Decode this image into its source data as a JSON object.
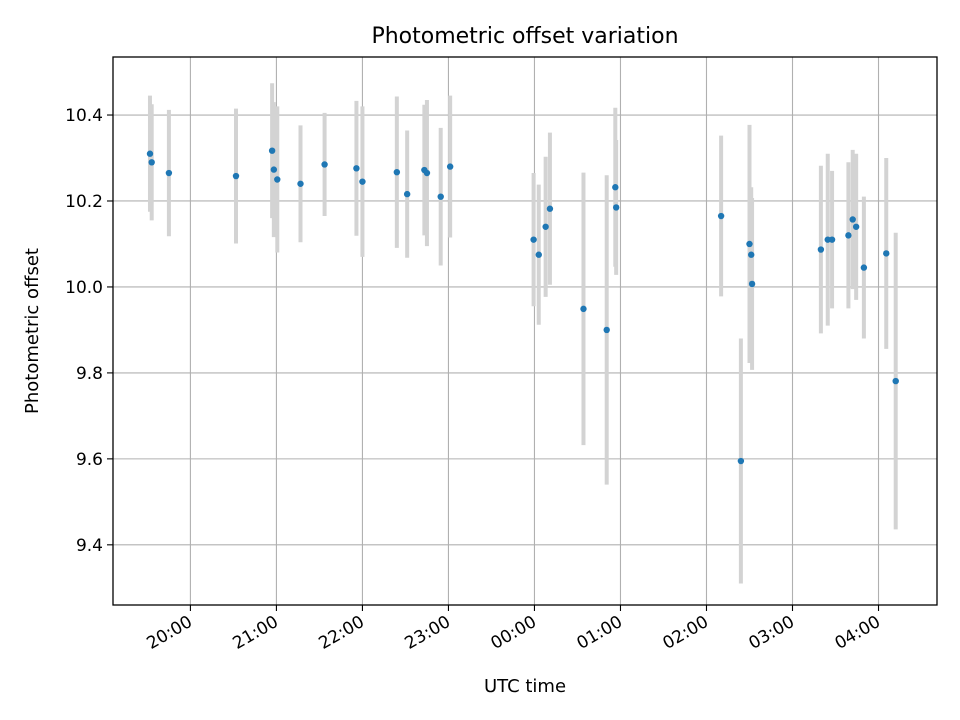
{
  "chart_data": {
    "type": "scatter",
    "title": "Photometric offset variation",
    "xlabel": "UTC time",
    "ylabel": "Photometric offset",
    "x_unit": "UTC time, hours after 00:00 (negative = previous evening)",
    "xlim": [
      -4.9,
      4.68
    ],
    "ylim": [
      9.26,
      10.535
    ],
    "x_ticks": [
      {
        "value": -4,
        "label": "20:00"
      },
      {
        "value": -3,
        "label": "21:00"
      },
      {
        "value": -2,
        "label": "22:00"
      },
      {
        "value": -1,
        "label": "23:00"
      },
      {
        "value": 0,
        "label": "00:00"
      },
      {
        "value": 1,
        "label": "01:00"
      },
      {
        "value": 2,
        "label": "02:00"
      },
      {
        "value": 3,
        "label": "03:00"
      },
      {
        "value": 4,
        "label": "04:00"
      }
    ],
    "y_ticks": [
      {
        "value": 9.4,
        "label": "9.4"
      },
      {
        "value": 9.6,
        "label": "9.6"
      },
      {
        "value": 9.8,
        "label": "9.8"
      },
      {
        "value": 10.0,
        "label": "10.0"
      },
      {
        "value": 10.2,
        "label": "10.2"
      },
      {
        "value": 10.4,
        "label": "10.4"
      }
    ],
    "grid": true,
    "marker_color": "#1f77b4",
    "errorbar_color": "#d3d3d3",
    "points": [
      {
        "x": -4.47,
        "y": 10.31,
        "err": 0.135
      },
      {
        "x": -4.45,
        "y": 10.29,
        "err": 0.135
      },
      {
        "x": -4.25,
        "y": 10.265,
        "err": 0.147
      },
      {
        "x": -3.47,
        "y": 10.258,
        "err": 0.157
      },
      {
        "x": -3.05,
        "y": 10.317,
        "err": 0.157
      },
      {
        "x": -3.03,
        "y": 10.273,
        "err": 0.157
      },
      {
        "x": -2.99,
        "y": 10.25,
        "err": 0.17
      },
      {
        "x": -2.72,
        "y": 10.24,
        "err": 0.136
      },
      {
        "x": -2.44,
        "y": 10.285,
        "err": 0.12
      },
      {
        "x": -2.07,
        "y": 10.276,
        "err": 0.157
      },
      {
        "x": -2.0,
        "y": 10.245,
        "err": 0.175
      },
      {
        "x": -1.6,
        "y": 10.267,
        "err": 0.176
      },
      {
        "x": -1.48,
        "y": 10.216,
        "err": 0.148
      },
      {
        "x": -1.28,
        "y": 10.272,
        "err": 0.152
      },
      {
        "x": -1.25,
        "y": 10.265,
        "err": 0.17
      },
      {
        "x": -1.09,
        "y": 10.21,
        "err": 0.16
      },
      {
        "x": -0.98,
        "y": 10.28,
        "err": 0.165
      },
      {
        "x": -0.01,
        "y": 10.11,
        "err": 0.155
      },
      {
        "x": 0.05,
        "y": 10.075,
        "err": 0.163
      },
      {
        "x": 0.13,
        "y": 10.14,
        "err": 0.163
      },
      {
        "x": 0.18,
        "y": 10.182,
        "err": 0.177
      },
      {
        "x": 0.57,
        "y": 9.949,
        "err": 0.317
      },
      {
        "x": 0.84,
        "y": 9.9,
        "err": 0.36
      },
      {
        "x": 0.94,
        "y": 10.232,
        "err": 0.185
      },
      {
        "x": 0.95,
        "y": 10.185,
        "err": 0.157
      },
      {
        "x": 2.17,
        "y": 10.165,
        "err": 0.187
      },
      {
        "x": 2.4,
        "y": 9.595,
        "err": 0.285
      },
      {
        "x": 2.5,
        "y": 10.1,
        "err": 0.277
      },
      {
        "x": 2.52,
        "y": 10.075,
        "err": 0.157
      },
      {
        "x": 2.53,
        "y": 10.007,
        "err": 0.2
      },
      {
        "x": 3.33,
        "y": 10.087,
        "err": 0.195
      },
      {
        "x": 3.41,
        "y": 10.11,
        "err": 0.2
      },
      {
        "x": 3.46,
        "y": 10.11,
        "err": 0.16
      },
      {
        "x": 3.65,
        "y": 10.12,
        "err": 0.17
      },
      {
        "x": 3.7,
        "y": 10.157,
        "err": 0.162
      },
      {
        "x": 3.74,
        "y": 10.14,
        "err": 0.17
      },
      {
        "x": 3.83,
        "y": 10.045,
        "err": 0.165
      },
      {
        "x": 4.09,
        "y": 10.078,
        "err": 0.222
      },
      {
        "x": 4.2,
        "y": 9.781,
        "err": 0.345
      }
    ]
  }
}
